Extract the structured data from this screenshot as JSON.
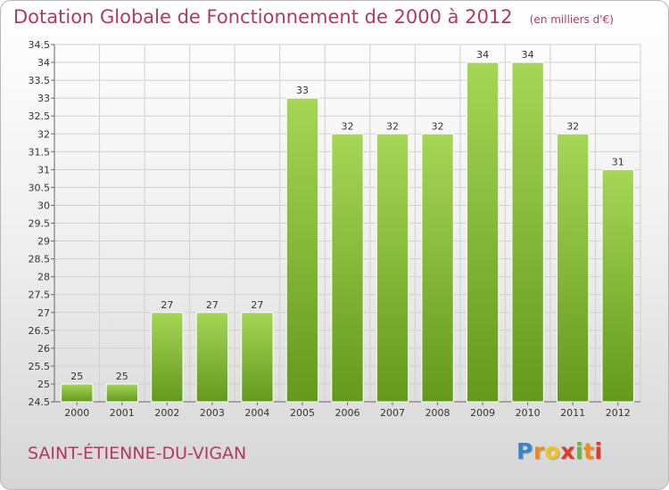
{
  "title": "Dotation Globale de Fonctionnement de 2000 à 2012",
  "unit": "(en milliers d'€)",
  "commune": "SAINT-ÉTIENNE-DU-VIGAN",
  "brand": "Proxiti",
  "colors": {
    "bar_top": "#a6d656",
    "bar_bottom": "#64991c",
    "title": "#b23a5f",
    "grid": "#d0d0d0"
  },
  "chart_data": {
    "type": "bar",
    "title": "Dotation Globale de Fonctionnement de 2000 à 2012",
    "subtitle": "(en milliers d'€)",
    "categories": [
      "2000",
      "2001",
      "2002",
      "2003",
      "2004",
      "2005",
      "2006",
      "2007",
      "2008",
      "2009",
      "2010",
      "2011",
      "2012"
    ],
    "values": [
      25,
      25,
      27,
      27,
      27,
      33,
      32,
      32,
      32,
      34,
      34,
      32,
      31
    ],
    "data_labels": [
      "25",
      "25",
      "27",
      "27",
      "27",
      "33",
      "32",
      "32",
      "32",
      "34",
      "34",
      "32",
      "31"
    ],
    "ylim": [
      24.5,
      34.5
    ],
    "yticks": [
      24.5,
      25,
      25.5,
      26,
      26.5,
      27,
      27.5,
      28,
      28.5,
      29,
      29.5,
      30,
      30.5,
      31,
      31.5,
      32,
      32.5,
      33,
      33.5,
      34,
      34.5
    ],
    "ytick_labels": [
      "24.5",
      "25",
      "25.5",
      "26",
      "26.5",
      "27",
      "27.5",
      "28",
      "28.5",
      "29",
      "29.5",
      "30",
      "30.5",
      "31",
      "31.5",
      "32",
      "32.5",
      "33",
      "33.5",
      "34",
      "34.5"
    ],
    "grid": true,
    "legend": "none",
    "xlabel": "",
    "ylabel": ""
  }
}
